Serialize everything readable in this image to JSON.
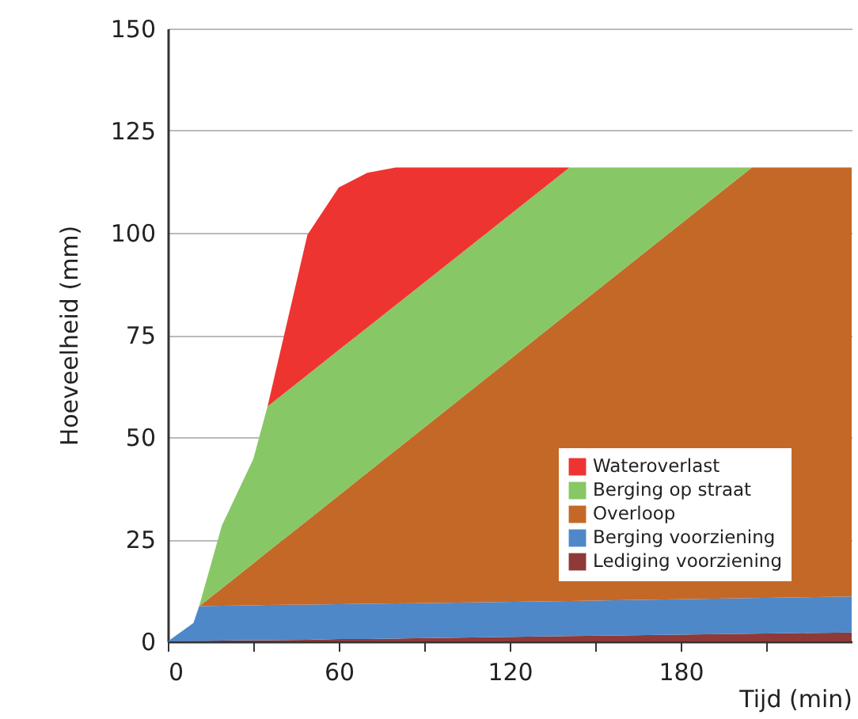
{
  "chart_data": {
    "type": "area",
    "stacked": true,
    "xlabel": "Tijd (min)",
    "ylabel": "Hoeveelheid (mm)",
    "x": [
      0,
      9,
      11,
      19,
      30,
      35,
      49,
      60,
      70,
      80,
      141,
      205,
      240
    ],
    "series": [
      {
        "name": "Lediging voorziening",
        "color": "#8e3a38",
        "values": [
          0,
          0.1,
          0.1,
          0.2,
          0.3,
          0.3,
          0.4,
          0.6,
          0.6,
          0.7,
          1.3,
          1.9,
          2.2
        ]
      },
      {
        "name": "Berging voorziening",
        "color": "#4f88c8",
        "values": [
          0,
          4.4,
          8.5,
          8.5,
          8.5,
          8.6,
          8.6,
          8.5,
          8.6,
          8.6,
          8.6,
          8.7,
          8.8
        ]
      },
      {
        "name": "Overloop",
        "color": "#c46828",
        "values": [
          0,
          0,
          0,
          4.3,
          10.3,
          13.0,
          20.6,
          26.6,
          32.1,
          37.5,
          70.7,
          105.4,
          105.0
        ]
      },
      {
        "name": "Berging op straat",
        "color": "#88c765",
        "values": [
          null,
          null,
          0,
          15.4,
          25.5,
          35.6,
          35.6,
          35.6,
          35.5,
          35.5,
          35.4,
          0,
          null
        ]
      },
      {
        "name": "Wateroverlast",
        "color": "#ee3431",
        "values": [
          null,
          null,
          null,
          null,
          null,
          0,
          34.3,
          39.8,
          37.9,
          33.7,
          0,
          null,
          null
        ]
      }
    ],
    "xlim": [
      0,
      240
    ],
    "ylim": [
      0,
      150
    ],
    "xticks": [
      0,
      {
        "value": 30,
        "label": null
      },
      60,
      {
        "value": 90,
        "label": null
      },
      120,
      {
        "value": 150,
        "label": null
      },
      180,
      {
        "value": 210,
        "label": null
      }
    ],
    "yticks": [
      0,
      25,
      50,
      75,
      100,
      125,
      150
    ],
    "grid": "y",
    "legend": "bottom right"
  }
}
